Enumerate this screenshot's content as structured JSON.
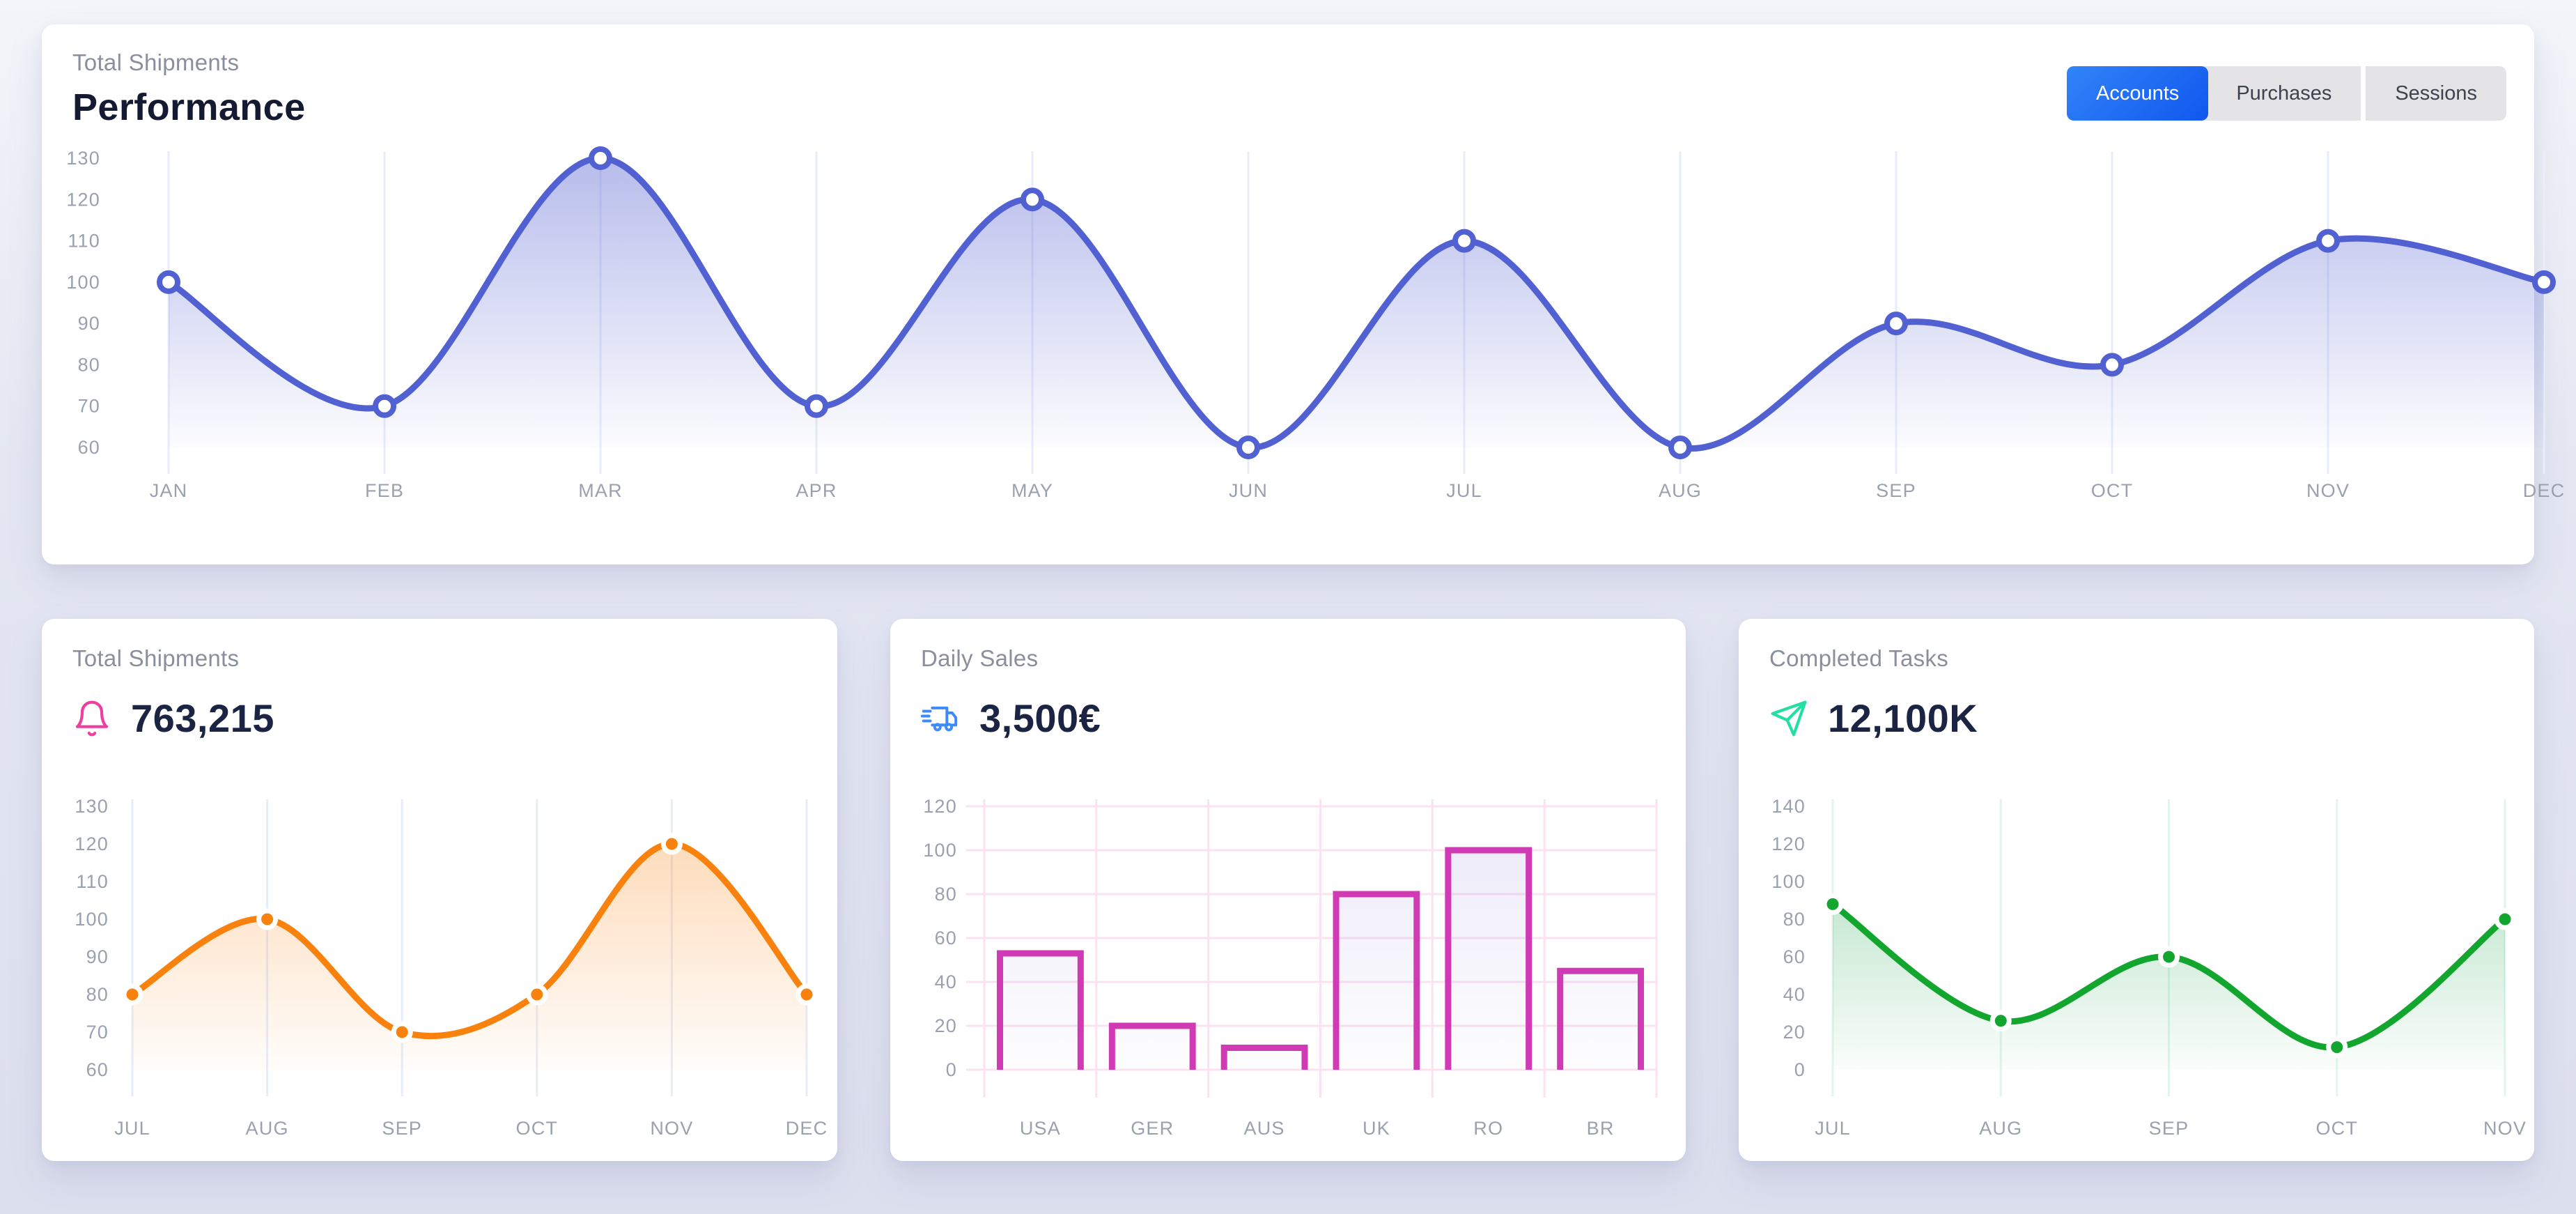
{
  "top_card": {
    "subtitle": "Total Shipments",
    "title": "Performance",
    "tabs": [
      {
        "label": "Accounts",
        "active": true
      },
      {
        "label": "Purchases",
        "active": false
      },
      {
        "label": "Sessions",
        "active": false
      }
    ]
  },
  "stat_cards": [
    {
      "title": "Total Shipments",
      "value": "763,215",
      "icon": "bell-icon",
      "icon_color": "#ec3f9e"
    },
    {
      "title": "Daily Sales",
      "value": "3,500€",
      "icon": "truck-icon",
      "icon_color": "#3d8bf8"
    },
    {
      "title": "Completed Tasks",
      "value": "12,100K",
      "icon": "send-icon",
      "icon_color": "#23dfa2"
    }
  ],
  "colors": {
    "active_tab_blue": "#1f6bf4",
    "indigo_line": "#5161d1",
    "orange_line": "#f8820d",
    "magenta_bar": "#d13ab5",
    "green_line": "#12a62f",
    "page_background": "#e4e7f2",
    "heading_dark": "#141a31",
    "label_gray": "#8a8f9d",
    "axis_gray": "#9aa1ae"
  },
  "chart_data": [
    {
      "type": "line",
      "name": "performance-monthly",
      "categories": [
        "JAN",
        "FEB",
        "MAR",
        "APR",
        "MAY",
        "JUN",
        "JUL",
        "AUG",
        "SEP",
        "OCT",
        "NOV",
        "DEC"
      ],
      "values": [
        100,
        70,
        130,
        70,
        120,
        60,
        110,
        60,
        90,
        80,
        110,
        100
      ],
      "ylim": [
        60,
        130
      ],
      "y_step": 10,
      "grid": "vertical",
      "grid_color": "#e9edf9",
      "line_color": "#5161d1",
      "fill_from": "rgba(95,107,211,0.45)",
      "fill_to": "rgba(95,107,211,0.02)",
      "marker": "hollow",
      "legend": "none"
    },
    {
      "type": "line",
      "name": "total-shipments",
      "categories": [
        "JUL",
        "AUG",
        "SEP",
        "OCT",
        "NOV",
        "DEC"
      ],
      "values": [
        80,
        100,
        70,
        80,
        120,
        80
      ],
      "ylim": [
        60,
        130
      ],
      "y_step": 10,
      "grid": "vertical",
      "grid_color": "#e7edf8",
      "line_color": "#f8820d",
      "fill_from": "rgba(248,130,13,0.32)",
      "fill_to": "rgba(248,130,13,0.02)",
      "marker": "solid",
      "legend": "none"
    },
    {
      "type": "bar",
      "name": "daily-sales",
      "categories": [
        "USA",
        "GER",
        "AUS",
        "UK",
        "RO",
        "BR"
      ],
      "values": [
        53,
        20,
        10,
        80,
        100,
        45
      ],
      "ylim": [
        0,
        120
      ],
      "y_step": 20,
      "grid": "both",
      "grid_color": "#fbe2f1",
      "bar_color": "#d13ab5",
      "fill_from": "rgba(118,98,210,0.14)",
      "fill_to": "rgba(118,98,210,0.01)",
      "legend": "none"
    },
    {
      "type": "line",
      "name": "completed-tasks",
      "categories": [
        "JUL",
        "AUG",
        "SEP",
        "OCT",
        "NOV"
      ],
      "values": [
        88,
        26,
        60,
        12,
        80
      ],
      "ylim": [
        0,
        140
      ],
      "y_step": 20,
      "grid": "vertical",
      "grid_color": "#e2f5ec",
      "line_color": "#12a62f",
      "fill_from": "rgba(35,167,80,0.40)",
      "fill_to": "rgba(35,167,80,0.02)",
      "marker": "solid",
      "legend": "none"
    }
  ]
}
